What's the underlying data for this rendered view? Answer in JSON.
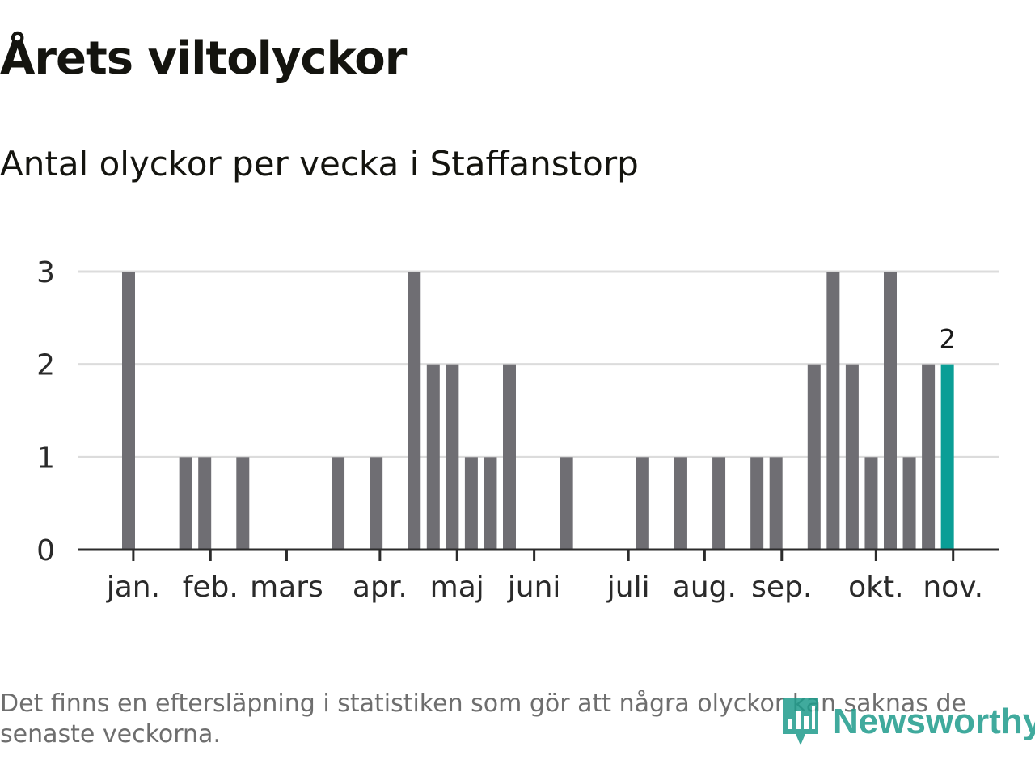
{
  "title": "Årets viltolyckor",
  "subtitle": "Antal olyckor per vecka i Staffanstorp",
  "footnote": "Det finns en eftersläpning i statistiken som gör att några olyckor kan saknas de senaste veckorna.",
  "logo": {
    "text": "Newsworthy",
    "icon": "bar-chart-pin-icon"
  },
  "colors": {
    "bar": "#6f6e73",
    "highlight": "#0a9e96",
    "grid": "#dcdcdc",
    "axis": "#2b2b2b",
    "text": "#1a1a14",
    "muted": "#6e6e6e"
  },
  "chart_data": {
    "type": "bar",
    "title": "Antal olyckor per vecka i Staffanstorp",
    "xlabel": "",
    "ylabel": "",
    "ylim": [
      0,
      3
    ],
    "yticks": [
      0,
      1,
      2,
      3
    ],
    "grid": true,
    "weeks": [
      1,
      2,
      3,
      4,
      5,
      6,
      7,
      8,
      9,
      10,
      11,
      12,
      13,
      14,
      15,
      16,
      17,
      18,
      19,
      20,
      21,
      22,
      23,
      24,
      25,
      26,
      27,
      28,
      29,
      30,
      31,
      32,
      33,
      34,
      35,
      36,
      37,
      38,
      39,
      40,
      41,
      42,
      43,
      44
    ],
    "values": [
      3,
      0,
      0,
      1,
      1,
      0,
      1,
      0,
      0,
      0,
      0,
      1,
      0,
      1,
      0,
      3,
      2,
      2,
      1,
      1,
      2,
      0,
      0,
      1,
      0,
      0,
      0,
      1,
      0,
      1,
      0,
      1,
      0,
      1,
      1,
      0,
      2,
      3,
      2,
      1,
      3,
      1,
      2,
      2
    ],
    "month_labels": [
      {
        "label": "jan.",
        "week": 1.25
      },
      {
        "label": "feb.",
        "week": 5.3
      },
      {
        "label": "mars",
        "week": 9.3
      },
      {
        "label": "apr.",
        "week": 14.2
      },
      {
        "label": "maj",
        "week": 18.25
      },
      {
        "label": "juni",
        "week": 22.3
      },
      {
        "label": "juli",
        "week": 27.25
      },
      {
        "label": "aug.",
        "week": 31.25
      },
      {
        "label": "sep.",
        "week": 35.3
      },
      {
        "label": "okt.",
        "week": 40.25
      },
      {
        "label": "nov.",
        "week": 44.3
      }
    ],
    "highlight_week": 44,
    "highlight_label": "2"
  }
}
